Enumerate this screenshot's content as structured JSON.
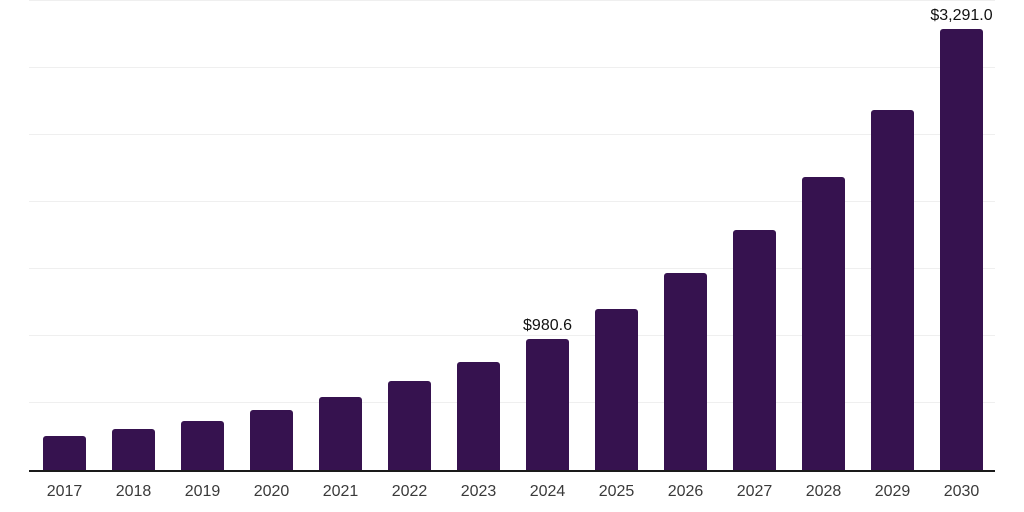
{
  "chart_data": {
    "type": "bar",
    "title": "",
    "xlabel": "",
    "ylabel": "",
    "categories": [
      "2017",
      "2018",
      "2019",
      "2020",
      "2021",
      "2022",
      "2023",
      "2024",
      "2025",
      "2026",
      "2027",
      "2028",
      "2029",
      "2030"
    ],
    "values": [
      253,
      305,
      365,
      447,
      544,
      663,
      804,
      980.6,
      1199,
      1467,
      1790,
      2190,
      2690,
      3291
    ],
    "data_labels": {
      "2024": "$980.6",
      "2030": "$3,291.0"
    },
    "ylim": [
      0,
      3500
    ],
    "grid_step": 500,
    "grid": "horizontal",
    "legend": "none",
    "colors": {
      "bar": "#36124F",
      "gridline": "#efefef",
      "axis_line": "#1a1a1a",
      "tick_label": "#3a3a3a",
      "data_label": "#111111",
      "background": "#ffffff"
    }
  }
}
